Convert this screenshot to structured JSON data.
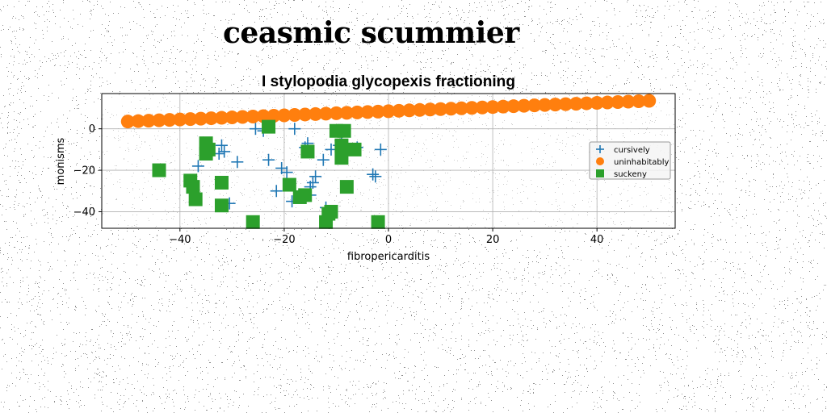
{
  "page": {
    "title": "ceasmic scummier"
  },
  "chart_data": {
    "type": "scatter",
    "title": "I stylopodia glycopexis fractioning",
    "xlabel": "fibropericarditis",
    "ylabel": "monisms",
    "xlim": [
      -55,
      55
    ],
    "ylim": [
      -48,
      17
    ],
    "xticks": [
      -40,
      -20,
      0,
      20,
      40
    ],
    "yticks": [
      0,
      -20,
      -40
    ],
    "grid": true,
    "legend_position": "right",
    "series": [
      {
        "name": "cursively",
        "marker": "plus",
        "color": "#1f77b4",
        "x": [
          -36.5,
          -32,
          -32.5,
          -31.5,
          -30.5,
          -29,
          -25.5,
          -24,
          -23,
          -21.5,
          -20.5,
          -19.5,
          -18.5,
          -18,
          -16,
          -15.5,
          -15,
          -15,
          -14.5,
          -14,
          -12.5,
          -12,
          -11,
          -9.5,
          -9,
          -8,
          -6,
          -3,
          -2.5,
          -1.5
        ],
        "y": [
          -18,
          -8,
          -12,
          -11,
          -36,
          -16,
          0,
          -1,
          -15,
          -30,
          -19,
          -21,
          -35,
          0,
          -9,
          -7,
          -32,
          -28,
          -26,
          -23,
          -15,
          -38,
          -10,
          -8,
          -7,
          -11,
          -9,
          -22,
          -23,
          -10
        ]
      },
      {
        "name": "uninhabitably",
        "marker": "circle",
        "color": "#ff7f0e",
        "x": [
          -50,
          -48,
          -46,
          -44,
          -42,
          -40,
          -38,
          -36,
          -34,
          -32,
          -30,
          -28,
          -26,
          -24,
          -22,
          -20,
          -18,
          -16,
          -14,
          -12,
          -10,
          -8,
          -6,
          -4,
          -2,
          0,
          2,
          4,
          6,
          8,
          10,
          12,
          14,
          16,
          18,
          20,
          22,
          24,
          26,
          28,
          30,
          32,
          34,
          36,
          38,
          40,
          42,
          44,
          46,
          48,
          50
        ],
        "y": [
          3.5,
          3.7,
          3.9,
          4.1,
          4.3,
          4.5,
          4.7,
          4.9,
          5.1,
          5.3,
          5.5,
          5.7,
          5.9,
          6.1,
          6.3,
          6.5,
          6.7,
          6.9,
          7.1,
          7.3,
          7.5,
          7.7,
          7.9,
          8.1,
          8.3,
          8.5,
          8.7,
          8.9,
          9.1,
          9.3,
          9.5,
          9.7,
          9.9,
          10.1,
          10.3,
          10.5,
          10.7,
          10.9,
          11.1,
          11.3,
          11.5,
          11.7,
          11.9,
          12.1,
          12.3,
          12.5,
          12.7,
          12.9,
          13.1,
          13.3,
          13.5
        ]
      },
      {
        "name": "suckeny",
        "marker": "square",
        "color": "#2ca02c",
        "x": [
          -44,
          -38,
          -37.5,
          -37,
          -35,
          -35,
          -34.5,
          -32,
          -32,
          -26,
          -23,
          -19,
          -17,
          -16,
          -15.5,
          -12,
          -11.5,
          -11,
          -10,
          -9,
          -9,
          -8.5,
          -8,
          -6.5,
          -2
        ],
        "y": [
          -20,
          -25,
          -28,
          -34,
          -7,
          -12,
          -10,
          -26,
          -37,
          -45,
          1,
          -27,
          -33,
          -32,
          -11,
          -45,
          -41,
          -40,
          -1,
          -14,
          -8,
          -1,
          -28,
          -10,
          -45
        ]
      }
    ]
  }
}
